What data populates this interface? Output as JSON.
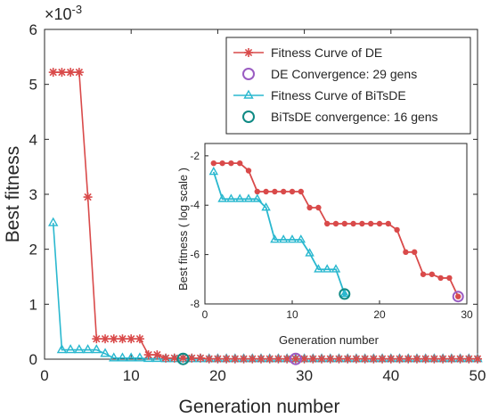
{
  "colors": {
    "de": "#d94a4a",
    "bitsde": "#2ab8cf",
    "de_conv": "#9a5cc2",
    "bitsde_conv": "#0f8a84",
    "axis": "#262626"
  },
  "chart_data": {
    "main": {
      "type": "line",
      "xlabel": "Generation number",
      "ylabel": "Best  fitness",
      "y_multiplier": "×10",
      "y_exponent": "-3",
      "xlim": [
        0,
        50
      ],
      "ylim": [
        0,
        6
      ],
      "xticks": [
        "0",
        "10",
        "20",
        "30",
        "40",
        "50"
      ],
      "yticks": [
        "0",
        "1",
        "2",
        "3",
        "4",
        "5",
        "6"
      ],
      "legend_position": "top-right",
      "series": [
        {
          "name": "Fitness Curve of DE",
          "marker": "asterisk",
          "x": [
            1,
            2,
            3,
            4,
            5,
            6,
            7,
            8,
            9,
            10,
            11,
            12,
            13,
            14,
            15,
            16,
            17,
            18,
            19,
            20,
            21,
            22,
            23,
            24,
            25,
            26,
            27,
            28,
            29,
            30,
            31,
            32,
            33,
            34,
            35,
            36,
            37,
            38,
            39,
            40,
            41,
            42,
            43,
            44,
            45,
            46,
            47,
            48,
            49,
            50
          ],
          "values": [
            5.22,
            5.22,
            5.22,
            5.22,
            2.95,
            0.37,
            0.37,
            0.37,
            0.37,
            0.37,
            0.37,
            0.08,
            0.08,
            0.02,
            0.02,
            0.02,
            0.02,
            0.02,
            0.005,
            0.005,
            0.005,
            0.005,
            0.005,
            0.005,
            0.005,
            0.005,
            0.005,
            0.005,
            0.005,
            0.005,
            0.005,
            0.005,
            0.005,
            0.005,
            0.005,
            0.005,
            0.005,
            0.005,
            0.005,
            0.005,
            0.005,
            0.005,
            0.005,
            0.005,
            0.005,
            0.005,
            0.005,
            0.005,
            0.005,
            0.005
          ]
        },
        {
          "name": "DE Convergence: 29 gens",
          "marker": "circle",
          "x": [
            29
          ],
          "values": [
            0.005
          ]
        },
        {
          "name": "Fitness Curve of BiTsDE",
          "marker": "triangle",
          "x": [
            1,
            2,
            3,
            4,
            5,
            6,
            7,
            8,
            9,
            10,
            11,
            12,
            13,
            14,
            15,
            16,
            17,
            18,
            19,
            20,
            21,
            22,
            23,
            24,
            25,
            26,
            27,
            28,
            29,
            30,
            31,
            32,
            33,
            34,
            35,
            36,
            37,
            38,
            39,
            40,
            41,
            42,
            43,
            44,
            45,
            46,
            47,
            48,
            49,
            50
          ],
          "values": [
            2.48,
            0.17,
            0.17,
            0.17,
            0.17,
            0.17,
            0.1,
            0.02,
            0.02,
            0.02,
            0.02,
            0.01,
            0.01,
            0.005,
            0.005,
            0.005,
            0.005,
            0.005,
            0.005,
            0.005,
            0.005,
            0.005,
            0.005,
            0.005,
            0.005,
            0.005,
            0.005,
            0.005,
            0.005,
            0.005,
            0.005,
            0.005,
            0.005,
            0.005,
            0.005,
            0.005,
            0.005,
            0.005,
            0.005,
            0.005,
            0.005,
            0.005,
            0.005,
            0.005,
            0.005,
            0.005,
            0.005,
            0.005,
            0.005,
            0.005
          ]
        },
        {
          "name": "BiTsDE convergence: 16 gens",
          "marker": "circle",
          "x": [
            16
          ],
          "values": [
            0.005
          ]
        }
      ]
    },
    "inset": {
      "type": "line",
      "xlabel": "Generation number",
      "ylabel": "Best  fitness ( log scale )",
      "xlim": [
        0,
        30
      ],
      "ylim": [
        -8,
        -1.5
      ],
      "xticks": [
        "0",
        "10",
        "20",
        "30"
      ],
      "yticks": [
        "-2",
        "-4",
        "-6",
        "-8"
      ],
      "series": [
        {
          "name": "Fitness Curve of DE",
          "x": [
            1,
            2,
            3,
            4,
            5,
            6,
            7,
            8,
            9,
            10,
            11,
            12,
            13,
            14,
            15,
            16,
            17,
            18,
            19,
            20,
            21,
            22,
            23,
            24,
            25,
            26,
            27,
            28,
            29
          ],
          "values": [
            -2.3,
            -2.3,
            -2.3,
            -2.3,
            -2.6,
            -3.45,
            -3.45,
            -3.45,
            -3.45,
            -3.45,
            -3.45,
            -4.1,
            -4.1,
            -4.75,
            -4.75,
            -4.75,
            -4.75,
            -4.75,
            -4.75,
            -4.75,
            -4.75,
            -5,
            -5.9,
            -5.9,
            -6.8,
            -6.8,
            -6.95,
            -6.95,
            -7.7
          ]
        },
        {
          "name": "DE Convergence: 29 gens",
          "x": [
            29
          ],
          "values": [
            -7.7
          ]
        },
        {
          "name": "Fitness Curve of BiTsDE",
          "x": [
            1,
            2,
            3,
            4,
            5,
            6,
            7,
            8,
            9,
            10,
            11,
            12,
            13,
            14,
            15,
            16
          ],
          "values": [
            -2.65,
            -3.75,
            -3.75,
            -3.75,
            -3.75,
            -3.75,
            -4.1,
            -5.4,
            -5.4,
            -5.4,
            -5.4,
            -5.95,
            -6.6,
            -6.6,
            -6.6,
            -7.6
          ]
        },
        {
          "name": "BiTsDE convergence: 16 gens",
          "x": [
            16
          ],
          "values": [
            -7.6
          ]
        }
      ]
    }
  }
}
